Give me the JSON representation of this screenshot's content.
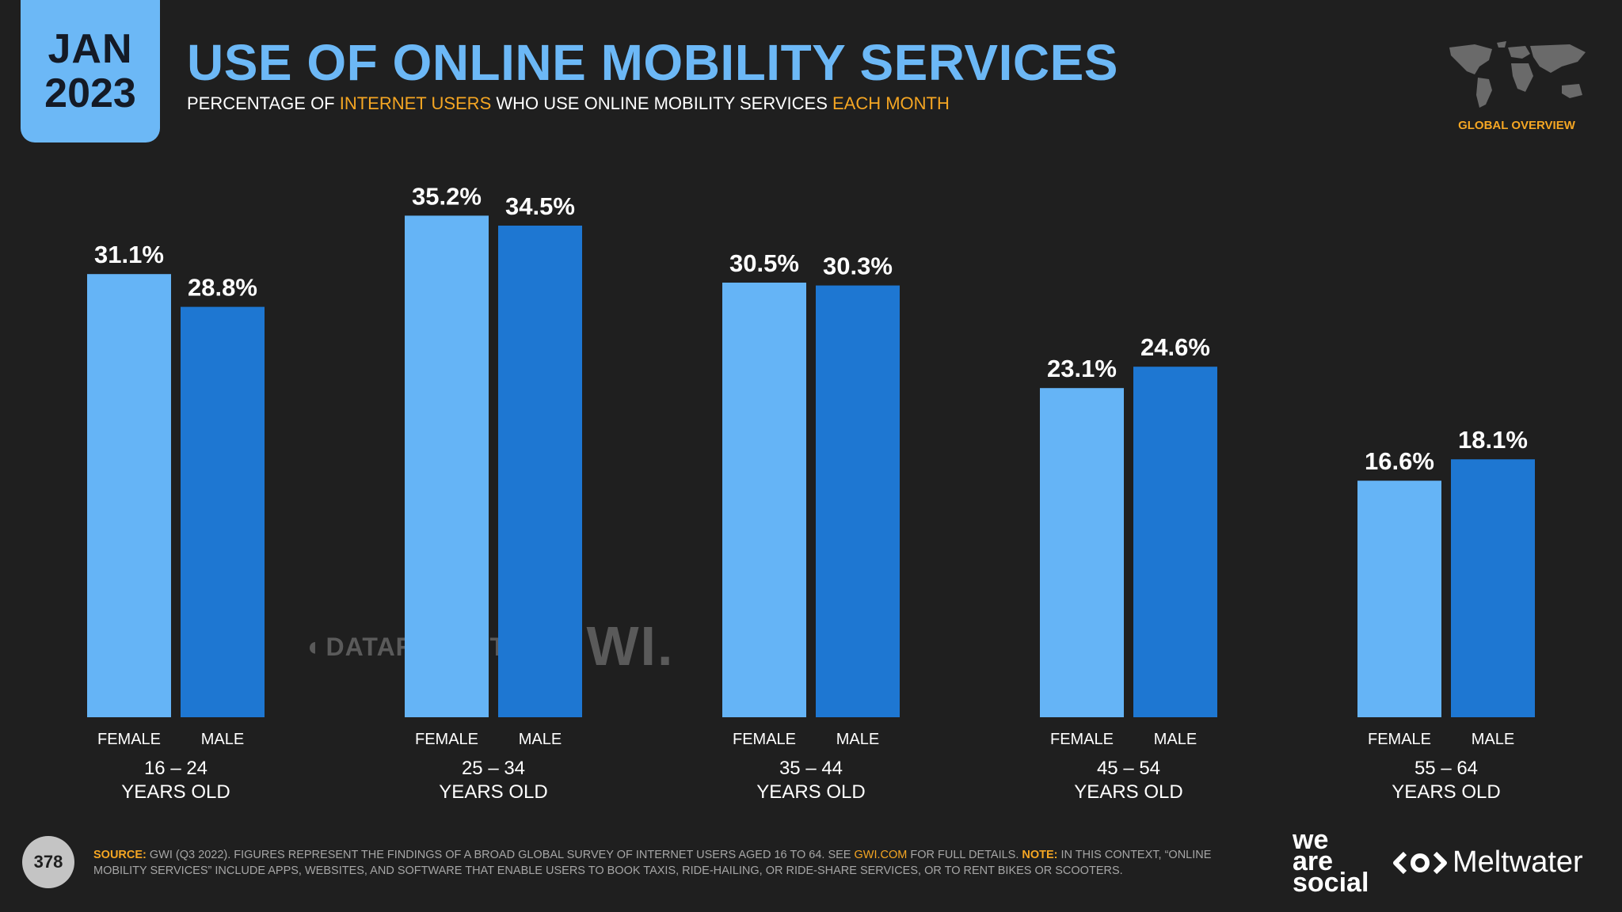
{
  "header": {
    "date_month": "JAN",
    "date_year": "2023",
    "title": "USE OF ONLINE MOBILITY SERVICES",
    "subtitle_parts": [
      "PERCENTAGE OF ",
      "INTERNET USERS",
      " WHO USE ONLINE MOBILITY SERVICES ",
      "EACH MONTH"
    ],
    "region_label": "GLOBAL OVERVIEW"
  },
  "chart_data": {
    "type": "bar",
    "title": "USE OF ONLINE MOBILITY SERVICES",
    "categories": [
      "16 – 24 YEARS OLD",
      "25 – 34 YEARS OLD",
      "35 – 44 YEARS OLD",
      "45 – 54 YEARS OLD",
      "55 – 64 YEARS OLD"
    ],
    "category_lines": [
      [
        "16 – 24",
        "YEARS OLD"
      ],
      [
        "25 – 34",
        "YEARS OLD"
      ],
      [
        "35 – 44",
        "YEARS OLD"
      ],
      [
        "45 – 54",
        "YEARS OLD"
      ],
      [
        "55 – 64",
        "YEARS OLD"
      ]
    ],
    "series": [
      {
        "name": "FEMALE",
        "values": [
          31.1,
          35.2,
          30.5,
          23.1,
          16.6
        ],
        "color": "#65b4f6"
      },
      {
        "name": "MALE",
        "values": [
          28.8,
          34.5,
          30.3,
          24.6,
          18.1
        ],
        "color": "#1e77d2"
      }
    ],
    "value_suffix": "%",
    "ylim": [
      0,
      40
    ],
    "xlabel": "",
    "ylabel": "",
    "grid": false
  },
  "watermarks": {
    "datareportal": "DATAREPORTAL",
    "gwi": "GWI."
  },
  "footer": {
    "page_number": "378",
    "source_label": "SOURCE:",
    "source_text": " GWI (Q3 2022). FIGURES REPRESENT THE FINDINGS OF A BROAD GLOBAL SURVEY OF INTERNET USERS AGED 16 TO 64. SEE ",
    "source_link": "GWI.COM",
    "source_text_2": " FOR FULL DETAILS. ",
    "note_label": "NOTE:",
    "note_text": " IN THIS CONTEXT, “ONLINE MOBILITY SERVICES” INCLUDE APPS, WEBSITES, AND SOFTWARE THAT ENABLE USERS TO BOOK TAXIS, RIDE-HAILING, OR RIDE-SHARE SERVICES, OR TO RENT BIKES OR SCOOTERS.",
    "brand_1_lines": [
      "we",
      "are",
      "social"
    ],
    "brand_2": "Meltwater"
  }
}
